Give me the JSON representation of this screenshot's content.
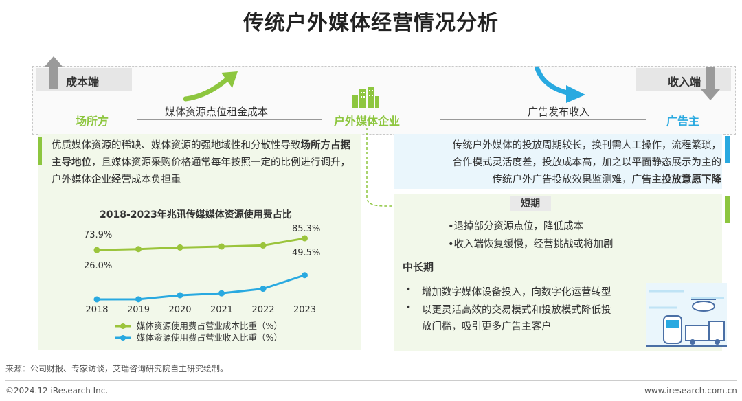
{
  "title": "传统户外媒体经营情况分析",
  "flow": {
    "cost_label": "成本端",
    "revenue_label": "收入端",
    "venue": "场所方",
    "enterprise": "户外媒体企业",
    "advertiser": "广告主",
    "left_flow": "媒体资源点位租金成本",
    "right_flow": "广告发布收入"
  },
  "left_panel": {
    "p1": "优质媒体资源的稀缺、媒体资源的强地域性和分散性导致",
    "p1_bold": "场所方占据主导地位",
    "p2": "，且媒体资源采购价格通常每年按照一定的比例进行调升，户外媒体企业经营成本负担重"
  },
  "right_top": {
    "line1": "传统户外媒体的投放周期较长，换刊需人工操作，流程繁琐，",
    "line2": "合作模式灵活度差，投放成本高，加之以平面静态展示为主的",
    "line3": "传统户外广告投放效果监测难，",
    "line3_bold": "广告主投放意愿下降"
  },
  "short_term": {
    "label": "短期",
    "items": [
      "•退掉部分资源点位，降低成本",
      "•收入端恢复缓慢，经营挑战或将加剧"
    ]
  },
  "long_term": {
    "label": "中长期",
    "bullet": "•",
    "item1": "增加数字媒体设备投入，向数字化运营转型",
    "item2a": "以更灵活高效的交易模式和投放模式降低投",
    "item2b": "放门槛，吸引更多广告主客户"
  },
  "chart_data": {
    "type": "line",
    "title": "2018-2023年兆讯传媒媒体资源使用费占比",
    "categories": [
      "2018",
      "2019",
      "2020",
      "2021",
      "2022",
      "2023"
    ],
    "series": [
      {
        "name": "媒体资源使用费占营业成本比重（%）",
        "values": [
          73.9,
          74.8,
          76.4,
          77.3,
          78.4,
          85.3
        ],
        "color": "#9bc43c"
      },
      {
        "name": "媒体资源使用费占营业收入比重（%）",
        "values": [
          26.0,
          26.1,
          30.0,
          31.9,
          36.3,
          49.5
        ],
        "color": "#29a9e0"
      }
    ],
    "labels": {
      "s1_start": "73.9%",
      "s1_end": "85.3%",
      "s2_start": "26.0%",
      "s2_end": "49.5%"
    }
  },
  "footer": {
    "source": "来源：公司财报、专家访谈，艾瑞咨询研究院自主研究绘制。",
    "copyright": "©2024.12 iResearch Inc.",
    "url": "www.iresearch.com.cn"
  }
}
